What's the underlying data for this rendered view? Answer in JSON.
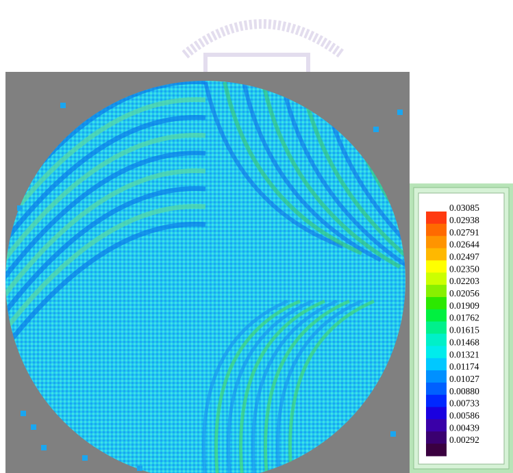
{
  "legend": {
    "items": [
      {
        "label": "0.03085",
        "color": "#ff3a10"
      },
      {
        "label": "0.02938",
        "color": "#ff6a00"
      },
      {
        "label": "0.02791",
        "color": "#ff9400"
      },
      {
        "label": "0.02644",
        "color": "#ffb800"
      },
      {
        "label": "0.02497",
        "color": "#ffff00"
      },
      {
        "label": "0.02350",
        "color": "#ccff00"
      },
      {
        "label": "0.02203",
        "color": "#88f000"
      },
      {
        "label": "0.02056",
        "color": "#2ce800"
      },
      {
        "label": "0.01909",
        "color": "#00f040"
      },
      {
        "label": "0.01762",
        "color": "#00f08c"
      },
      {
        "label": "0.01615",
        "color": "#00f0c8"
      },
      {
        "label": "0.01468",
        "color": "#00ecec"
      },
      {
        "label": "0.01321",
        "color": "#00c8ff"
      },
      {
        "label": "0.01174",
        "color": "#0090ff"
      },
      {
        "label": "0.01027",
        "color": "#0060ff"
      },
      {
        "label": "0.00880",
        "color": "#0028ff"
      },
      {
        "label": "0.00733",
        "color": "#1a00e0"
      },
      {
        "label": "0.00586",
        "color": "#3a00a8"
      },
      {
        "label": "0.00439",
        "color": "#3a0070"
      },
      {
        "label": "0.00292",
        "color": "#3a0040"
      }
    ]
  }
}
